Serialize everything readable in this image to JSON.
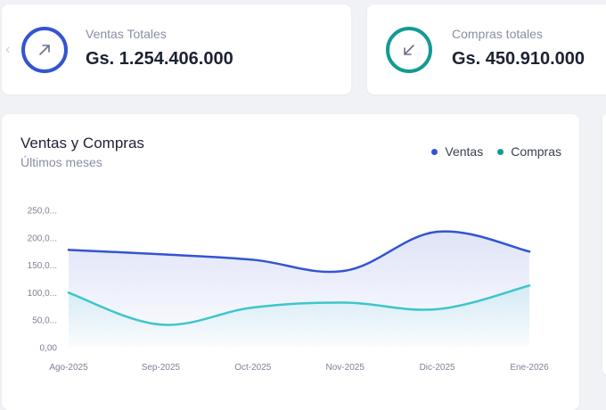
{
  "stats": {
    "ventas": {
      "label": "Ventas Totales",
      "value": "Gs. 1.254.406.000",
      "icon": "arrow-up-right-icon",
      "color": "#3454d1"
    },
    "compras": {
      "label": "Compras totales",
      "value": "Gs. 450.910.000",
      "icon": "arrow-down-left-icon",
      "color": "#149a95"
    }
  },
  "chart": {
    "title": "Ventas y Compras",
    "subtitle": "Últimos meses"
  },
  "chart_data": {
    "type": "area",
    "title": "Ventas y Compras",
    "subtitle": "Últimos meses",
    "categories": [
      "Ago-2025",
      "Sep-2025",
      "Oct-2025",
      "Nov-2025",
      "Dic-2025",
      "Ene-2026"
    ],
    "y_tick_labels": [
      "0,00",
      "50,0...",
      "100,0...",
      "150,0...",
      "200,0...",
      "250,0..."
    ],
    "ylim": [
      0,
      250
    ],
    "legend_position": "top-right",
    "series": [
      {
        "name": "Ventas",
        "color": "#3454d1",
        "values": [
          178,
          170,
          160,
          140,
          211,
          175
        ]
      },
      {
        "name": "Compras",
        "color": "#3cc6cc",
        "values": [
          100,
          42,
          73,
          82,
          70,
          113
        ]
      }
    ]
  }
}
